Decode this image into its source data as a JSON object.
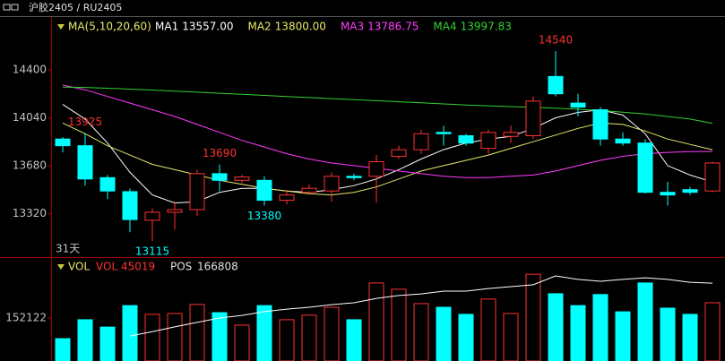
{
  "chart_data": [
    {
      "type": "candlestick",
      "title": "沪胶2405 / RU2405",
      "indicator_label": "MA(5,10,20,60)",
      "period_label": "31天",
      "up_color": "#ff3232",
      "down_color": "#00ffff",
      "ylim": [
        13000,
        14790
      ],
      "yticks": [
        14400,
        14040,
        13680,
        13320
      ],
      "open": [
        13880,
        13830,
        13590,
        13485,
        13270,
        13330,
        13350,
        13620,
        13570,
        13570,
        13420,
        13480,
        13490,
        13600,
        13600,
        13750,
        13800,
        13930,
        13905,
        13810,
        13900,
        13905,
        14350,
        14150,
        14100,
        13880,
        13850,
        13480,
        13500,
        13490
      ],
      "high": [
        13895,
        13925,
        13610,
        13510,
        13360,
        13410,
        13650,
        13690,
        13610,
        13600,
        13490,
        13540,
        13630,
        13620,
        13760,
        13830,
        13950,
        13980,
        13920,
        13950,
        13980,
        14200,
        14540,
        14220,
        14120,
        13930,
        13880,
        13560,
        13520,
        13710
      ],
      "low": [
        13780,
        13530,
        13430,
        13180,
        13115,
        13200,
        13300,
        13490,
        13550,
        13380,
        13390,
        13470,
        13410,
        13570,
        13400,
        13730,
        13770,
        13830,
        13830,
        13770,
        13850,
        13880,
        14200,
        14050,
        13830,
        13830,
        13470,
        13380,
        13460,
        13480
      ],
      "close": [
        13830,
        13580,
        13490,
        13275,
        13330,
        13350,
        13620,
        13570,
        13595,
        13420,
        13460,
        13510,
        13600,
        13590,
        13710,
        13800,
        13920,
        13920,
        13850,
        13930,
        13930,
        14165,
        14220,
        14120,
        13880,
        13850,
        13480,
        13460,
        13480,
        13700
      ],
      "annotations": [
        {
          "value": 13925
        },
        {
          "value": 13690
        },
        {
          "value": 14540
        },
        {
          "value": 13115
        },
        {
          "value": 13380
        }
      ],
      "series": [
        {
          "name": "MA1",
          "color": "#ffffff",
          "value_label": "13557.00",
          "values": [
            14140,
            14030,
            13850,
            13630,
            13460,
            13400,
            13410,
            13480,
            13510,
            13510,
            13490,
            13480,
            13500,
            13530,
            13580,
            13650,
            13730,
            13800,
            13850,
            13880,
            13900,
            13960,
            14040,
            14080,
            14100,
            14060,
            13920,
            13680,
            13610,
            13557
          ]
        },
        {
          "name": "MA2",
          "color": "#e8e86a",
          "value_label": "13800.00",
          "values": [
            14000,
            13920,
            13830,
            13760,
            13690,
            13650,
            13610,
            13570,
            13540,
            13510,
            13490,
            13470,
            13460,
            13480,
            13520,
            13580,
            13640,
            13680,
            13720,
            13760,
            13810,
            13860,
            13910,
            13960,
            14000,
            13990,
            13940,
            13880,
            13840,
            13800
          ]
        },
        {
          "name": "MA3",
          "color": "#ff3cff",
          "value_label": "13786.75",
          "values": [
            14285,
            14250,
            14200,
            14150,
            14100,
            14050,
            13990,
            13930,
            13870,
            13820,
            13770,
            13730,
            13700,
            13680,
            13660,
            13640,
            13620,
            13600,
            13590,
            13590,
            13600,
            13610,
            13640,
            13680,
            13720,
            13750,
            13770,
            13780,
            13785,
            13786.75
          ]
        },
        {
          "name": "MA4",
          "color": "#32d232",
          "value_label": "13997.83",
          "values": [
            14270,
            14268,
            14262,
            14255,
            14248,
            14240,
            14232,
            14224,
            14216,
            14208,
            14200,
            14192,
            14184,
            14176,
            14168,
            14160,
            14152,
            14144,
            14136,
            14130,
            14124,
            14118,
            14112,
            14104,
            14094,
            14082,
            14068,
            14050,
            14030,
            13997.83
          ]
        }
      ]
    },
    {
      "type": "bar",
      "indicator_label": "VOL",
      "series_name": "VOL",
      "current_volume": 45019,
      "pos_name": "POS",
      "current_pos": 166808,
      "ylim": [
        0,
        358000
      ],
      "yticks": [
        152122
      ],
      "values": [
        79000,
        146000,
        120000,
        196000,
        165000,
        168000,
        200000,
        171000,
        127000,
        196000,
        146000,
        162000,
        190000,
        146000,
        276000,
        254000,
        203000,
        190000,
        165000,
        219000,
        168000,
        307000,
        238000,
        196000,
        235000,
        174000,
        276000,
        187000,
        165000,
        206000
      ],
      "pos_color": "#ffffff",
      "y2lim": [
        140000,
        172000
      ],
      "pos": [
        null,
        null,
        null,
        147900,
        149300,
        150800,
        152200,
        153600,
        154400,
        155600,
        156400,
        157000,
        157800,
        158400,
        159800,
        160700,
        161200,
        162100,
        162100,
        162900,
        163500,
        164100,
        166900,
        165800,
        165200,
        165800,
        166300,
        165800,
        164900,
        164600
      ]
    }
  ]
}
